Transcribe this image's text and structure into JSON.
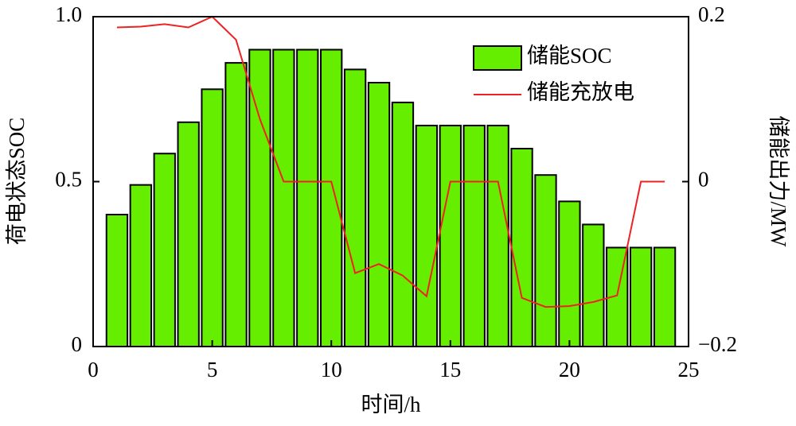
{
  "chart_data": {
    "type": "bar",
    "x": [
      1,
      2,
      3,
      4,
      5,
      6,
      7,
      8,
      9,
      10,
      11,
      12,
      13,
      14,
      15,
      16,
      17,
      18,
      19,
      20,
      21,
      22,
      23,
      24
    ],
    "xlabel": "时间/h",
    "ylabel": "荷电状态SOC",
    "y2label": "储能出力/MW",
    "xlim": [
      0,
      25
    ],
    "xticks": [
      0,
      5,
      10,
      15,
      20,
      25
    ],
    "ylim": [
      0,
      1
    ],
    "yticks": [
      0,
      0.5,
      {
        "value": 1,
        "label": "1.0"
      }
    ],
    "y2lim": [
      -0.2,
      0.2
    ],
    "y2ticks": [
      {
        "value": -0.2,
        "label": "−0.2"
      },
      0,
      0.2
    ],
    "legend": "upper right",
    "series": [
      {
        "name": "储能SOC",
        "type": "bar",
        "color": "#66ee00",
        "values": [
          0.4,
          0.49,
          0.585,
          0.68,
          0.78,
          0.86,
          0.9,
          0.9,
          0.9,
          0.9,
          0.84,
          0.8,
          0.74,
          0.67,
          0.67,
          0.67,
          0.67,
          0.6,
          0.52,
          0.44,
          0.37,
          0.3,
          0.3,
          0.3
        ]
      },
      {
        "name": "储能充放电",
        "type": "line",
        "axis": "y2",
        "color": "#ee2222",
        "values": [
          0.187,
          0.188,
          0.191,
          0.187,
          0.2,
          0.172,
          0.076,
          0,
          0,
          0,
          -0.111,
          -0.1,
          -0.114,
          -0.139,
          0,
          0,
          0,
          -0.141,
          -0.152,
          -0.151,
          -0.146,
          -0.138,
          0,
          0
        ]
      }
    ]
  }
}
